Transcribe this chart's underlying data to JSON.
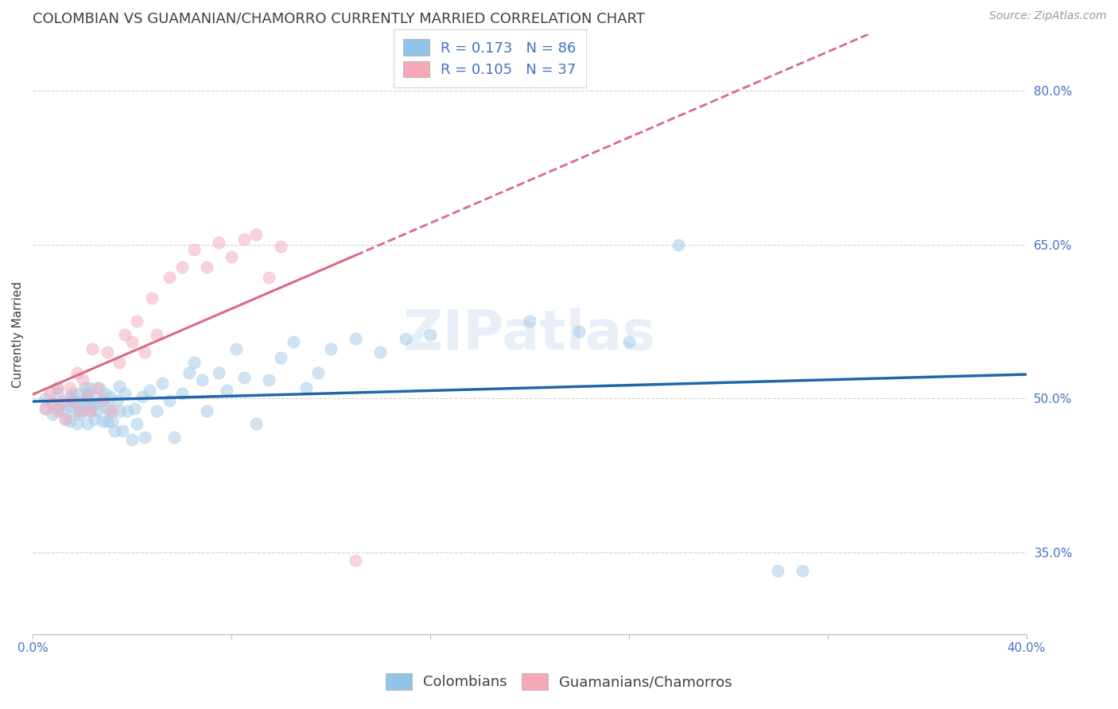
{
  "title": "COLOMBIAN VS GUAMANIAN/CHAMORRO CURRENTLY MARRIED CORRELATION CHART",
  "source": "Source: ZipAtlas.com",
  "ylabel": "Currently Married",
  "ytick_labels": [
    "35.0%",
    "50.0%",
    "65.0%",
    "80.0%"
  ],
  "ytick_values": [
    0.35,
    0.5,
    0.65,
    0.8
  ],
  "xlim": [
    0.0,
    0.4
  ],
  "ylim": [
    0.27,
    0.855
  ],
  "watermark": "ZIPatlas",
  "R1": 0.173,
  "R2": 0.105,
  "N1": 86,
  "N2": 37,
  "legend_color1": "#91c4e8",
  "legend_color2": "#f4a8b8",
  "scatter_color1": "#a8cce8",
  "scatter_color2": "#f4afc0",
  "line_color1": "#2166ac",
  "line_color2": "#d96b80",
  "title_fontsize": 13,
  "label_fontsize": 11,
  "tick_fontsize": 11,
  "source_fontsize": 10,
  "legend_fontsize": 13,
  "watermark_fontsize": 50,
  "scatter_size": 120,
  "scatter_alpha": 0.55,
  "background_color": "#ffffff",
  "grid_color": "#cccccc",
  "text_color_blue": "#4472c4",
  "text_color_title": "#404040",
  "colombians_x": [
    0.005,
    0.005,
    0.008,
    0.008,
    0.01,
    0.01,
    0.01,
    0.012,
    0.012,
    0.013,
    0.015,
    0.015,
    0.015,
    0.016,
    0.016,
    0.017,
    0.018,
    0.018,
    0.019,
    0.019,
    0.02,
    0.02,
    0.021,
    0.021,
    0.022,
    0.022,
    0.022,
    0.023,
    0.023,
    0.024,
    0.025,
    0.025,
    0.026,
    0.026,
    0.027,
    0.028,
    0.028,
    0.029,
    0.03,
    0.03,
    0.031,
    0.031,
    0.032,
    0.033,
    0.034,
    0.035,
    0.035,
    0.036,
    0.037,
    0.038,
    0.04,
    0.041,
    0.042,
    0.044,
    0.045,
    0.047,
    0.05,
    0.052,
    0.055,
    0.057,
    0.06,
    0.063,
    0.065,
    0.068,
    0.07,
    0.075,
    0.078,
    0.082,
    0.085,
    0.09,
    0.095,
    0.1,
    0.105,
    0.11,
    0.115,
    0.12,
    0.13,
    0.14,
    0.15,
    0.16,
    0.2,
    0.22,
    0.24,
    0.26,
    0.3,
    0.31
  ],
  "colombians_y": [
    0.49,
    0.5,
    0.485,
    0.495,
    0.49,
    0.505,
    0.51,
    0.488,
    0.495,
    0.48,
    0.502,
    0.492,
    0.478,
    0.498,
    0.505,
    0.488,
    0.495,
    0.475,
    0.505,
    0.485,
    0.498,
    0.488,
    0.51,
    0.492,
    0.475,
    0.505,
    0.498,
    0.488,
    0.51,
    0.495,
    0.48,
    0.502,
    0.495,
    0.488,
    0.51,
    0.498,
    0.478,
    0.505,
    0.49,
    0.478,
    0.502,
    0.488,
    0.478,
    0.468,
    0.498,
    0.512,
    0.488,
    0.468,
    0.505,
    0.488,
    0.46,
    0.49,
    0.475,
    0.502,
    0.462,
    0.508,
    0.488,
    0.515,
    0.498,
    0.462,
    0.505,
    0.525,
    0.535,
    0.518,
    0.488,
    0.525,
    0.508,
    0.548,
    0.52,
    0.475,
    0.518,
    0.54,
    0.555,
    0.51,
    0.525,
    0.548,
    0.558,
    0.545,
    0.558,
    0.562,
    0.575,
    0.565,
    0.555,
    0.65,
    0.332,
    0.332
  ],
  "chamorros_x": [
    0.005,
    0.007,
    0.008,
    0.01,
    0.01,
    0.012,
    0.013,
    0.015,
    0.016,
    0.018,
    0.019,
    0.02,
    0.022,
    0.023,
    0.024,
    0.026,
    0.028,
    0.03,
    0.032,
    0.035,
    0.037,
    0.04,
    0.042,
    0.045,
    0.048,
    0.05,
    0.055,
    0.06,
    0.065,
    0.07,
    0.075,
    0.08,
    0.085,
    0.09,
    0.095,
    0.1,
    0.13
  ],
  "chamorros_y": [
    0.49,
    0.505,
    0.495,
    0.51,
    0.488,
    0.498,
    0.48,
    0.51,
    0.498,
    0.525,
    0.488,
    0.518,
    0.502,
    0.488,
    0.548,
    0.51,
    0.498,
    0.545,
    0.488,
    0.535,
    0.562,
    0.555,
    0.575,
    0.545,
    0.598,
    0.562,
    0.618,
    0.628,
    0.645,
    0.628,
    0.652,
    0.638,
    0.655,
    0.66,
    0.618,
    0.648,
    0.342
  ]
}
